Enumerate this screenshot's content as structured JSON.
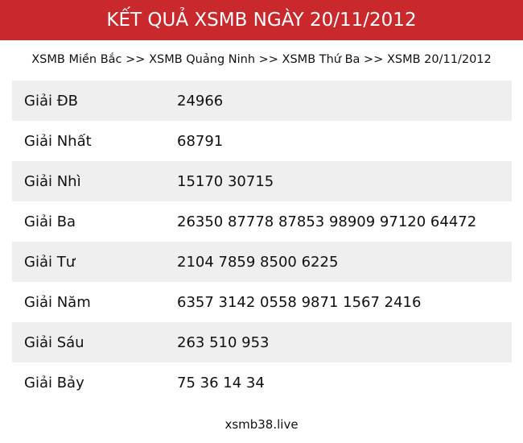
{
  "header": {
    "title": "KẾT QUẢ XSMB NGÀY 20/11/2012"
  },
  "breadcrumb": {
    "items": [
      "XSMB Miền Bắc",
      "XSMB Quảng Ninh",
      "XSMB Thứ Ba",
      "XSMB 20/11/2012"
    ],
    "separator": ">>"
  },
  "results": [
    {
      "label": "Giải ĐB",
      "value": "24966"
    },
    {
      "label": "Giải Nhất",
      "value": "68791"
    },
    {
      "label": "Giải Nhì",
      "value": "15170 30715"
    },
    {
      "label": "Giải Ba",
      "value": "26350 87778 87853 98909 97120 64472"
    },
    {
      "label": "Giải Tư",
      "value": "2104 7859 8500 6225"
    },
    {
      "label": "Giải Năm",
      "value": "6357 3142 0558 9871 1567 2416"
    },
    {
      "label": "Giải Sáu",
      "value": "263 510 953"
    },
    {
      "label": "Giải Bảy",
      "value": "75 36 14 34"
    }
  ],
  "footer": {
    "site": "xsmb38.live"
  },
  "colors": {
    "header_bg": "#c9282d",
    "row_alt_bg": "#efefef"
  }
}
